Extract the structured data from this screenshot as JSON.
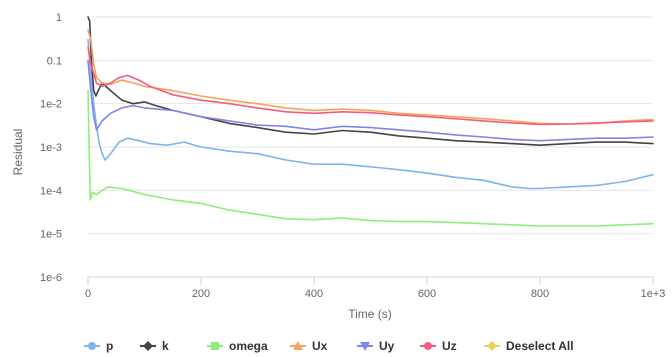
{
  "chart_data": {
    "type": "line",
    "xlabel": "Time (s)",
    "ylabel": "Residual",
    "xlim": [
      0,
      1000
    ],
    "ylim": [
      1e-06,
      1
    ],
    "yscale": "log",
    "grid": true,
    "legend_position": "bottom",
    "x_ticks": [
      {
        "value": 0,
        "label": "0"
      },
      {
        "value": 200,
        "label": "200"
      },
      {
        "value": 400,
        "label": "400"
      },
      {
        "value": 600,
        "label": "600"
      },
      {
        "value": 800,
        "label": "800"
      },
      {
        "value": 1000,
        "label": "1e+3"
      }
    ],
    "y_ticks": [
      {
        "value": 1,
        "label": "1"
      },
      {
        "value": 0.1,
        "label": "0.1"
      },
      {
        "value": 0.01,
        "label": "1e-2"
      },
      {
        "value": 0.001,
        "label": "1e-3"
      },
      {
        "value": 0.0001,
        "label": "1e-4"
      },
      {
        "value": 1e-05,
        "label": "1e-5"
      },
      {
        "value": 1e-06,
        "label": "1e-6"
      }
    ],
    "series": [
      {
        "name": "p",
        "color": "#7cb5ec",
        "marker": "circle",
        "points": [
          [
            0,
            0.3
          ],
          [
            5,
            0.05
          ],
          [
            10,
            0.01
          ],
          [
            15,
            0.003
          ],
          [
            20,
            0.0012
          ],
          [
            25,
            0.0007
          ],
          [
            30,
            0.0005
          ],
          [
            40,
            0.0007
          ],
          [
            55,
            0.0013
          ],
          [
            70,
            0.0016
          ],
          [
            90,
            0.0014
          ],
          [
            110,
            0.0012
          ],
          [
            140,
            0.0011
          ],
          [
            170,
            0.0013
          ],
          [
            200,
            0.001
          ],
          [
            250,
            0.0008
          ],
          [
            300,
            0.0007
          ],
          [
            350,
            0.0005
          ],
          [
            400,
            0.0004
          ],
          [
            450,
            0.0004
          ],
          [
            500,
            0.00035
          ],
          [
            550,
            0.0003
          ],
          [
            600,
            0.00025
          ],
          [
            650,
            0.0002
          ],
          [
            700,
            0.00017
          ],
          [
            750,
            0.00012
          ],
          [
            780,
            0.00011
          ],
          [
            800,
            0.00011
          ],
          [
            850,
            0.00012
          ],
          [
            900,
            0.00013
          ],
          [
            950,
            0.00016
          ],
          [
            1000,
            0.00023
          ]
        ]
      },
      {
        "name": "k",
        "color": "#434348",
        "marker": "diamond",
        "points": [
          [
            0,
            1
          ],
          [
            3,
            0.8
          ],
          [
            6,
            0.1
          ],
          [
            10,
            0.02
          ],
          [
            14,
            0.015
          ],
          [
            18,
            0.02
          ],
          [
            25,
            0.03
          ],
          [
            40,
            0.02
          ],
          [
            60,
            0.012
          ],
          [
            80,
            0.01
          ],
          [
            100,
            0.011
          ],
          [
            120,
            0.009
          ],
          [
            150,
            0.007
          ],
          [
            200,
            0.005
          ],
          [
            250,
            0.0035
          ],
          [
            300,
            0.0028
          ],
          [
            350,
            0.0022
          ],
          [
            400,
            0.002
          ],
          [
            450,
            0.0024
          ],
          [
            500,
            0.0022
          ],
          [
            550,
            0.0018
          ],
          [
            600,
            0.0016
          ],
          [
            650,
            0.0014
          ],
          [
            700,
            0.0013
          ],
          [
            750,
            0.0012
          ],
          [
            800,
            0.0011
          ],
          [
            850,
            0.0012
          ],
          [
            900,
            0.0013
          ],
          [
            950,
            0.0013
          ],
          [
            1000,
            0.0012
          ]
        ]
      },
      {
        "name": "omega",
        "color": "#90ed7d",
        "marker": "square",
        "points": [
          [
            0,
            0.02
          ],
          [
            2,
            0.001
          ],
          [
            4,
            6e-05
          ],
          [
            8,
            9e-05
          ],
          [
            15,
            8e-05
          ],
          [
            25,
            0.0001
          ],
          [
            35,
            0.00012
          ],
          [
            60,
            0.00011
          ],
          [
            100,
            8e-05
          ],
          [
            150,
            6e-05
          ],
          [
            200,
            5e-05
          ],
          [
            250,
            3.5e-05
          ],
          [
            300,
            2.8e-05
          ],
          [
            350,
            2.2e-05
          ],
          [
            400,
            2.1e-05
          ],
          [
            450,
            2.3e-05
          ],
          [
            500,
            2e-05
          ],
          [
            550,
            1.9e-05
          ],
          [
            600,
            1.9e-05
          ],
          [
            650,
            1.8e-05
          ],
          [
            700,
            1.7e-05
          ],
          [
            750,
            1.6e-05
          ],
          [
            800,
            1.5e-05
          ],
          [
            850,
            1.5e-05
          ],
          [
            900,
            1.5e-05
          ],
          [
            950,
            1.6e-05
          ],
          [
            1000,
            1.7e-05
          ]
        ]
      },
      {
        "name": "Ux",
        "color": "#f7a35c",
        "marker": "triangle",
        "points": [
          [
            0,
            0.5
          ],
          [
            5,
            0.3
          ],
          [
            10,
            0.08
          ],
          [
            15,
            0.04
          ],
          [
            25,
            0.03
          ],
          [
            40,
            0.028
          ],
          [
            60,
            0.035
          ],
          [
            80,
            0.03
          ],
          [
            100,
            0.025
          ],
          [
            150,
            0.02
          ],
          [
            200,
            0.015
          ],
          [
            250,
            0.012
          ],
          [
            300,
            0.01
          ],
          [
            350,
            0.008
          ],
          [
            400,
            0.007
          ],
          [
            450,
            0.0075
          ],
          [
            500,
            0.007
          ],
          [
            550,
            0.006
          ],
          [
            600,
            0.0055
          ],
          [
            650,
            0.005
          ],
          [
            700,
            0.0045
          ],
          [
            750,
            0.004
          ],
          [
            800,
            0.0035
          ],
          [
            850,
            0.0034
          ],
          [
            900,
            0.0035
          ],
          [
            950,
            0.004
          ],
          [
            1000,
            0.0043
          ]
        ]
      },
      {
        "name": "Uy",
        "color": "#8085e9",
        "marker": "triangle-down",
        "points": [
          [
            0,
            0.1
          ],
          [
            5,
            0.02
          ],
          [
            10,
            0.005
          ],
          [
            15,
            0.0025
          ],
          [
            25,
            0.004
          ],
          [
            40,
            0.006
          ],
          [
            60,
            0.008
          ],
          [
            80,
            0.009
          ],
          [
            100,
            0.008
          ],
          [
            150,
            0.007
          ],
          [
            200,
            0.005
          ],
          [
            250,
            0.004
          ],
          [
            300,
            0.0032
          ],
          [
            350,
            0.003
          ],
          [
            400,
            0.0025
          ],
          [
            450,
            0.003
          ],
          [
            500,
            0.0028
          ],
          [
            550,
            0.0025
          ],
          [
            600,
            0.0022
          ],
          [
            650,
            0.0019
          ],
          [
            700,
            0.0017
          ],
          [
            750,
            0.0015
          ],
          [
            800,
            0.0014
          ],
          [
            850,
            0.0015
          ],
          [
            900,
            0.0016
          ],
          [
            950,
            0.0016
          ],
          [
            1000,
            0.0017
          ]
        ]
      },
      {
        "name": "Uz",
        "color": "#f15c80",
        "marker": "circle",
        "points": [
          [
            0,
            0.2
          ],
          [
            5,
            0.08
          ],
          [
            10,
            0.05
          ],
          [
            15,
            0.03
          ],
          [
            25,
            0.025
          ],
          [
            40,
            0.03
          ],
          [
            55,
            0.04
          ],
          [
            70,
            0.045
          ],
          [
            90,
            0.035
          ],
          [
            110,
            0.025
          ],
          [
            150,
            0.016
          ],
          [
            200,
            0.012
          ],
          [
            250,
            0.01
          ],
          [
            300,
            0.008
          ],
          [
            350,
            0.0065
          ],
          [
            400,
            0.006
          ],
          [
            450,
            0.0065
          ],
          [
            500,
            0.0062
          ],
          [
            550,
            0.0055
          ],
          [
            600,
            0.005
          ],
          [
            650,
            0.0045
          ],
          [
            700,
            0.004
          ],
          [
            750,
            0.0036
          ],
          [
            800,
            0.0033
          ],
          [
            850,
            0.0034
          ],
          [
            900,
            0.0036
          ],
          [
            950,
            0.0038
          ],
          [
            1000,
            0.004
          ]
        ]
      }
    ],
    "legend_extra": {
      "name": "Deselect All",
      "color": "#e4d354",
      "marker": "diamond"
    }
  }
}
